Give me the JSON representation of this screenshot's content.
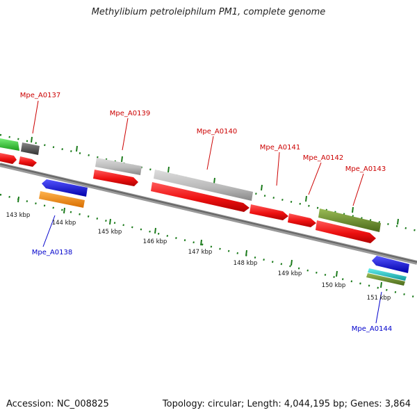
{
  "title": "Methylibium petroleiphilum PM1, complete genome",
  "accession": "Accession: NC_008825",
  "topology": "Topology: circular; Length: 4,044,195 bp; Genes: 3,864",
  "colors": {
    "backbone": "#777777",
    "tick_green": "#1a7a1a",
    "label_plus": "#cc0000",
    "label_minus": "#0000cc",
    "red": "#ee1111",
    "grey": "#bbbbbb",
    "dark_grey": "#555555",
    "green": "#33cc33",
    "blue": "#1a1aee",
    "orange": "#ff8c00",
    "olive": "#6e8b2e",
    "cyan": "#22cccc"
  },
  "kbp_labels": [
    "143 kbp",
    "144 kbp",
    "145 kbp",
    "146 kbp",
    "147 kbp",
    "148 kbp",
    "149 kbp",
    "150 kbp",
    "151 kbp"
  ],
  "gene_labels": {
    "plus": [
      "Mpe_A0137",
      "Mpe_A0139",
      "Mpe_A0140",
      "Mpe_A0141",
      "Mpe_A0142",
      "Mpe_A0143"
    ],
    "minus": [
      "Mpe_A0138",
      "Mpe_A0144"
    ]
  }
}
